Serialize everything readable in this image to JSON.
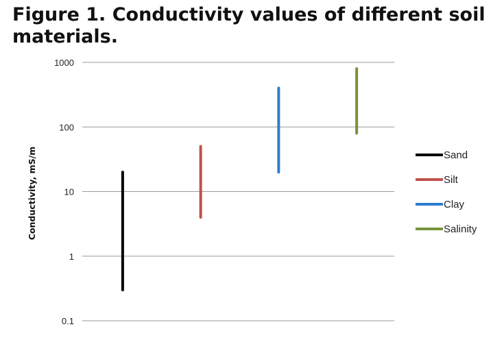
{
  "figure": {
    "title": "Figure 1. Conductivity values of different soil materials."
  },
  "chart_data": {
    "type": "range",
    "title": "Figure 1. Conductivity values of different soil materials.",
    "xlabel": "",
    "ylabel": "Conductivity, mS/m",
    "yscale": "log",
    "ylim": [
      0.1,
      1000
    ],
    "yticks": [
      0.1,
      1,
      10,
      100,
      1000
    ],
    "ytick_labels": [
      "0.1",
      "1",
      "10",
      "100",
      "1000"
    ],
    "grid": true,
    "legend_position": "right",
    "series": [
      {
        "name": "Sand",
        "low": 0.3,
        "high": 20,
        "color": "#000000"
      },
      {
        "name": "Silt",
        "low": 4,
        "high": 50,
        "color": "#c0504d"
      },
      {
        "name": "Clay",
        "low": 20,
        "high": 400,
        "color": "#2e7bcf"
      },
      {
        "name": "Salinity",
        "low": 80,
        "high": 800,
        "color": "#77933c"
      }
    ]
  }
}
